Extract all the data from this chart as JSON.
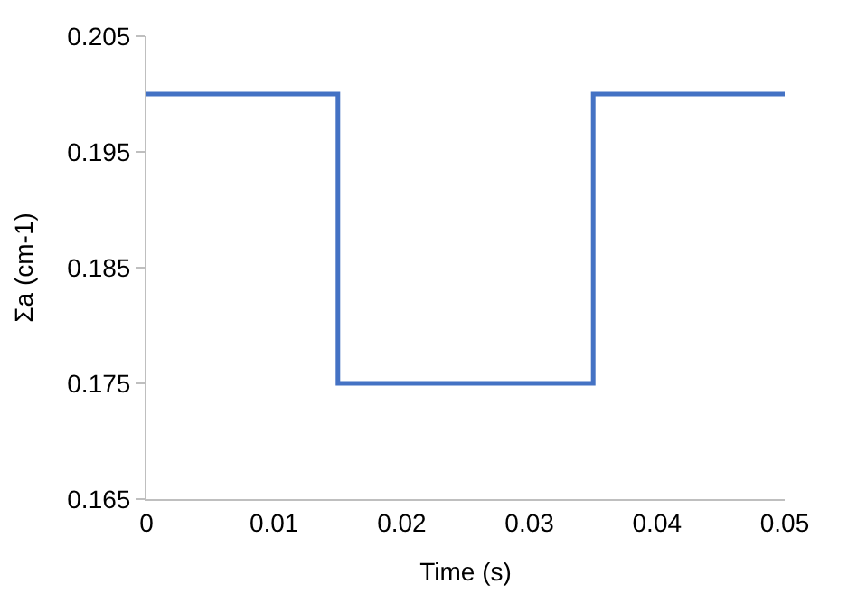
{
  "chart_data": {
    "type": "step",
    "xlabel": "Time (s)",
    "ylabel": "Σa (cm-1)",
    "x": [
      0,
      0.015,
      0.035,
      0.05
    ],
    "series": [
      {
        "color": "#4472c4",
        "values": [
          0.2,
          0.175,
          0.2,
          0.2
        ]
      }
    ],
    "xlim": [
      0,
      0.05
    ],
    "xticks": [
      0,
      0.01,
      0.02,
      0.03,
      0.04,
      0.05
    ],
    "ylim": [
      0.165,
      0.205
    ],
    "yticks": [
      0.165,
      0.175,
      0.185,
      0.195,
      0.205
    ]
  }
}
